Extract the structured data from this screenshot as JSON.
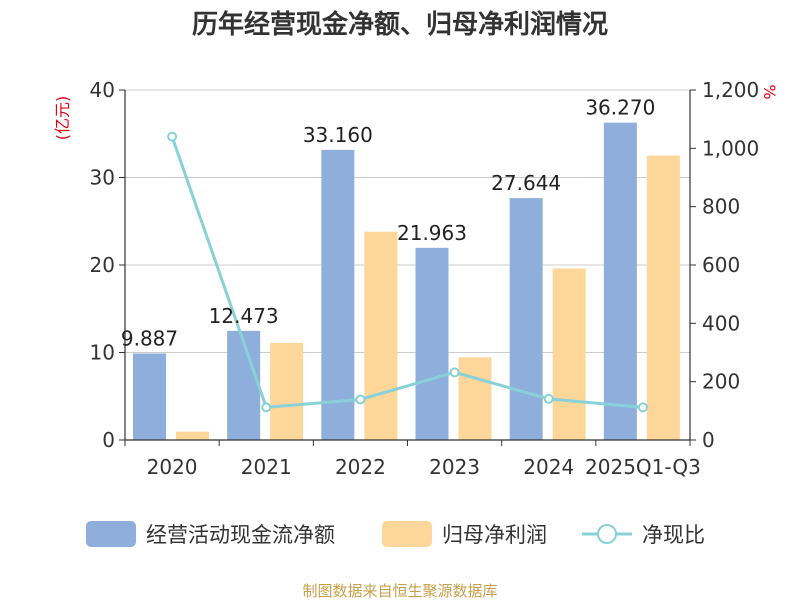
{
  "chart_data": {
    "type": "bar",
    "title": "历年经营现金净额、归母净利润情况",
    "categories": [
      "2020",
      "2021",
      "2022",
      "2023",
      "2024",
      "2025Q1-Q3"
    ],
    "series": [
      {
        "name": "经营活动现金流净额",
        "type": "bar",
        "axis": "left",
        "color": "#8eaedb",
        "values": [
          9.887,
          12.473,
          33.16,
          21.963,
          27.644,
          36.27
        ]
      },
      {
        "name": "归母净利润",
        "type": "bar",
        "axis": "left",
        "color": "#fdd699",
        "values": [
          0.95,
          11.1,
          23.8,
          9.45,
          19.6,
          32.5
        ]
      },
      {
        "name": "净现比",
        "type": "line",
        "axis": "right",
        "color": "#88d1d8",
        "values": [
          1040,
          112,
          139,
          232,
          141,
          112
        ]
      }
    ],
    "data_labels": [
      "9.887",
      "12.473",
      "33.160",
      "21.963",
      "27.644",
      "36.270"
    ],
    "y_left": {
      "unit": "(亿元)",
      "ylim": [
        0,
        40
      ],
      "ticks": [
        "0",
        "10",
        "20",
        "30",
        "40"
      ]
    },
    "y_right": {
      "unit": "%",
      "ylim": [
        0,
        1200
      ],
      "ticks": [
        "0",
        "200",
        "400",
        "600",
        "800",
        "1,000",
        "1,200"
      ]
    },
    "grid": true,
    "legend": "bottom"
  },
  "source": "制图数据来自恒生聚源数据库"
}
